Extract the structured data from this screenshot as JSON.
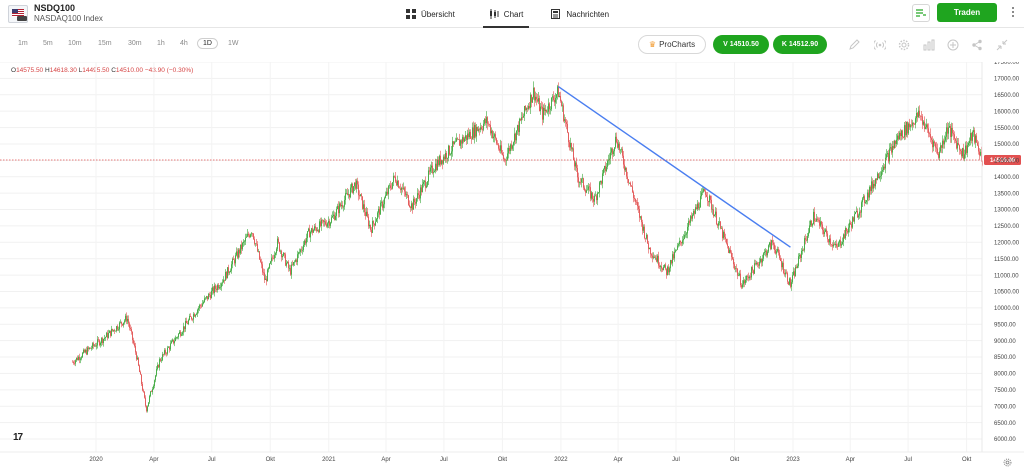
{
  "header": {
    "symbol": "NSDQ100",
    "instrument_name": "NASDAQ100 Index",
    "tabs": [
      {
        "label": "Übersicht",
        "icon": "grid-icon"
      },
      {
        "label": "Chart",
        "icon": "candlestick-icon"
      },
      {
        "label": "Nachrichten",
        "icon": "newspaper-icon"
      }
    ],
    "trade_label": "Traden"
  },
  "toolbar": {
    "timeframes": [
      "1m",
      "5m",
      "10m",
      "15m",
      "30m",
      "1h",
      "4h",
      "1D",
      "1W"
    ],
    "active_timeframe": "1D",
    "procharts_label": "ProCharts",
    "bid_label": "V 14510.50",
    "ask_label": "K 14512.90",
    "icons": [
      "pencil-icon",
      "signal-icon",
      "gear-icon",
      "bar-chart-icon",
      "plus-circle-icon",
      "share-icon",
      "collapse-icon"
    ]
  },
  "ohlc": {
    "open_label": "O",
    "open": "14575.50",
    "high_label": "H",
    "high": "14618.30",
    "low_label": "L",
    "low": "14495.50",
    "close_label": "C",
    "close": "14510.00",
    "change": "−43.90 (−0.30%)"
  },
  "colors": {
    "up": "#3aa63a",
    "down": "#e25050",
    "trendline": "#4a7ef0",
    "price_line": "#e25050",
    "trade_green": "#1fa51f"
  },
  "chart_data": {
    "type": "candlestick",
    "instrument": "NASDAQ100 Index",
    "interval": "1D",
    "ylim": [
      6000,
      17500
    ],
    "y_ticks": [
      6000,
      6500,
      7000,
      7500,
      8000,
      8500,
      9000,
      9500,
      10000,
      10500,
      11000,
      11500,
      12000,
      12500,
      13000,
      13500,
      14000,
      14500,
      15000,
      15500,
      16000,
      16500,
      17000,
      17500
    ],
    "y_tick_labels": [
      "6000.00",
      "6500.00",
      "7000.00",
      "7500.00",
      "8000.00",
      "8500.00",
      "9000.00",
      "9500.00",
      "10000.00",
      "10500.00",
      "11000.00",
      "11500.00",
      "12000.00",
      "12500.00",
      "13000.00",
      "13500.00",
      "14000.00",
      "14500.00",
      "15000.00",
      "15500.00",
      "16000.00",
      "16500.00",
      "17000.00",
      "17500.00"
    ],
    "x_ticks": [
      {
        "label": "2020",
        "date": "2020-01-01"
      },
      {
        "label": "Apr",
        "date": "2020-04-01"
      },
      {
        "label": "Jul",
        "date": "2020-07-01"
      },
      {
        "label": "Okt",
        "date": "2020-10-01"
      },
      {
        "label": "2021",
        "date": "2021-01-01"
      },
      {
        "label": "Apr",
        "date": "2021-04-01"
      },
      {
        "label": "Jul",
        "date": "2021-07-01"
      },
      {
        "label": "Okt",
        "date": "2021-10-01"
      },
      {
        "label": "2022",
        "date": "2022-01-01"
      },
      {
        "label": "Apr",
        "date": "2022-04-01"
      },
      {
        "label": "Jul",
        "date": "2022-07-01"
      },
      {
        "label": "Okt",
        "date": "2022-10-01"
      },
      {
        "label": "2023",
        "date": "2023-01-01"
      },
      {
        "label": "Apr",
        "date": "2023-04-01"
      },
      {
        "label": "Jul",
        "date": "2023-07-01"
      },
      {
        "label": "Okt",
        "date": "2023-10-01"
      }
    ],
    "x_range": [
      "2019-11-20",
      "2023-11-01"
    ],
    "last_price": 14510.0,
    "last_price_label": "14510.00",
    "trendline": {
      "start": {
        "date": "2021-12-28",
        "value": 16750
      },
      "end": {
        "date": "2022-12-28",
        "value": 11850
      }
    },
    "close_path": [
      {
        "date": "2019-11-25",
        "close": 8350
      },
      {
        "date": "2019-12-15",
        "close": 8650
      },
      {
        "date": "2020-01-15",
        "close": 9100
      },
      {
        "date": "2020-02-19",
        "close": 9700
      },
      {
        "date": "2020-03-05",
        "close": 8500
      },
      {
        "date": "2020-03-20",
        "close": 6900
      },
      {
        "date": "2020-04-10",
        "close": 8400
      },
      {
        "date": "2020-05-10",
        "close": 9200
      },
      {
        "date": "2020-06-10",
        "close": 10000
      },
      {
        "date": "2020-07-20",
        "close": 10900
      },
      {
        "date": "2020-09-02",
        "close": 12400
      },
      {
        "date": "2020-09-23",
        "close": 10800
      },
      {
        "date": "2020-10-12",
        "close": 12000
      },
      {
        "date": "2020-11-01",
        "close": 11100
      },
      {
        "date": "2020-12-01",
        "close": 12300
      },
      {
        "date": "2021-01-05",
        "close": 12700
      },
      {
        "date": "2021-02-12",
        "close": 13800
      },
      {
        "date": "2021-03-08",
        "close": 12400
      },
      {
        "date": "2021-04-15",
        "close": 14000
      },
      {
        "date": "2021-05-12",
        "close": 13100
      },
      {
        "date": "2021-06-15",
        "close": 14300
      },
      {
        "date": "2021-07-15",
        "close": 14900
      },
      {
        "date": "2021-09-07",
        "close": 15700
      },
      {
        "date": "2021-10-04",
        "close": 14500
      },
      {
        "date": "2021-11-19",
        "close": 16600
      },
      {
        "date": "2021-12-03",
        "close": 15900
      },
      {
        "date": "2021-12-28",
        "close": 16600
      },
      {
        "date": "2022-01-27",
        "close": 14000
      },
      {
        "date": "2022-02-23",
        "close": 13300
      },
      {
        "date": "2022-03-29",
        "close": 15200
      },
      {
        "date": "2022-05-20",
        "close": 11800
      },
      {
        "date": "2022-06-16",
        "close": 11100
      },
      {
        "date": "2022-08-16",
        "close": 13600
      },
      {
        "date": "2022-10-13",
        "close": 10700
      },
      {
        "date": "2022-11-30",
        "close": 12000
      },
      {
        "date": "2022-12-28",
        "close": 10700
      },
      {
        "date": "2023-02-02",
        "close": 12800
      },
      {
        "date": "2023-03-10",
        "close": 11800
      },
      {
        "date": "2023-04-18",
        "close": 13100
      },
      {
        "date": "2023-06-15",
        "close": 15200
      },
      {
        "date": "2023-07-19",
        "close": 15900
      },
      {
        "date": "2023-08-18",
        "close": 14700
      },
      {
        "date": "2023-09-01",
        "close": 15500
      },
      {
        "date": "2023-09-26",
        "close": 14700
      },
      {
        "date": "2023-10-11",
        "close": 15300
      },
      {
        "date": "2023-10-26",
        "close": 14510
      }
    ]
  }
}
